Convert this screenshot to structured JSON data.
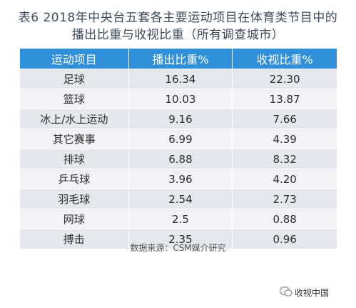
{
  "title": {
    "line1": "表6  2018年中央台五套各主要运动项目在体育类节目中的",
    "line2": "播出比重与收视比重（所有调查城市）"
  },
  "table": {
    "headers": [
      "运动项目",
      "播出比重%",
      "收视比重%"
    ],
    "rows": [
      [
        "足球",
        "16.34",
        "22.30"
      ],
      [
        "篮球",
        "10.03",
        "13.87"
      ],
      [
        "冰上/水上运动",
        "9.16",
        "7.66"
      ],
      [
        "其它赛事",
        "6.99",
        "4.39"
      ],
      [
        "排球",
        "6.88",
        "8.32"
      ],
      [
        "乒乓球",
        "3.96",
        "4.20"
      ],
      [
        "羽毛球",
        "2.54",
        "2.73"
      ],
      [
        "网球",
        "2.5",
        "0.88"
      ],
      [
        "搏击",
        "2.35",
        "0.96"
      ]
    ]
  },
  "source": "数据来源：CSM媒介研究",
  "brand": "收视中国"
}
